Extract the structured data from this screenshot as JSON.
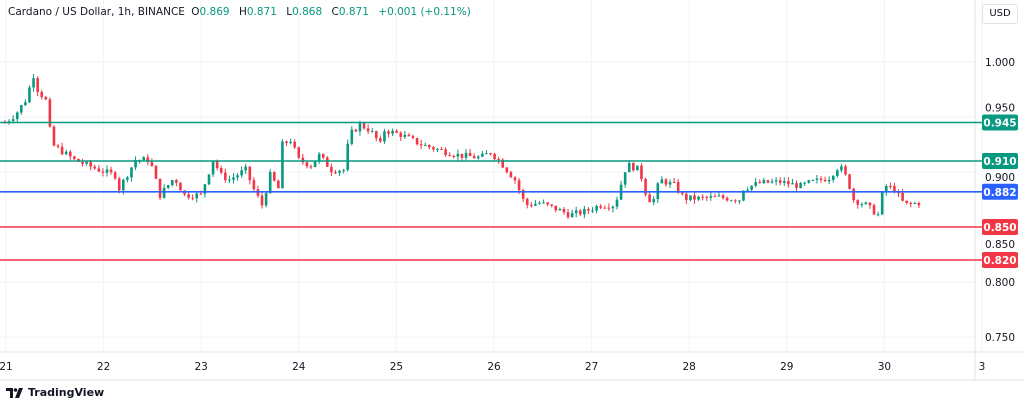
{
  "header": {
    "symbol": "Cardano / US Dollar, 1h, BINANCE",
    "o_label": "O",
    "o": "0.869",
    "h_label": "H",
    "h": "0.871",
    "l_label": "L",
    "l": "0.868",
    "c_label": "C",
    "c": "0.871",
    "change": "+0.001 (+0.11%)"
  },
  "currency_button": "USD",
  "brand": "TradingView",
  "colors": {
    "up": "#089981",
    "down": "#f23645",
    "resistance": "#089981",
    "pivot": "#2962ff",
    "support": "#f23645"
  },
  "chart_data": {
    "type": "candlestick",
    "title": "Cardano / US Dollar, 1h, BINANCE",
    "x_ticks": [
      "21",
      "22",
      "23",
      "24",
      "25",
      "26",
      "27",
      "28",
      "29",
      "30",
      "3"
    ],
    "y_ticks": [
      "1.000",
      "0.950",
      "0.900",
      "0.850",
      "0.800",
      "0.750"
    ],
    "y_tick_values": [
      1.0,
      0.95,
      0.9,
      0.85,
      0.8,
      0.75
    ],
    "ylim": [
      0.73,
      1.03
    ],
    "hours_total": 225,
    "close_path_hour_price": [
      [
        0,
        0.945
      ],
      [
        2.5,
        0.952
      ],
      [
        5,
        0.965
      ],
      [
        7,
        0.988
      ],
      [
        8,
        0.975
      ],
      [
        10,
        0.965
      ],
      [
        11.5,
        0.925
      ],
      [
        13.5,
        0.92
      ],
      [
        17,
        0.911
      ],
      [
        23,
        0.902
      ],
      [
        27,
        0.897
      ],
      [
        28,
        0.885
      ],
      [
        32,
        0.911
      ],
      [
        35.5,
        0.911
      ],
      [
        38,
        0.879
      ],
      [
        41.5,
        0.895
      ],
      [
        44,
        0.879
      ],
      [
        48,
        0.879
      ],
      [
        51,
        0.911
      ],
      [
        53,
        0.897
      ],
      [
        55,
        0.893
      ],
      [
        59,
        0.902
      ],
      [
        61,
        0.884
      ],
      [
        63,
        0.87
      ],
      [
        65,
        0.897
      ],
      [
        67,
        0.885
      ],
      [
        68,
        0.925
      ],
      [
        70,
        0.929
      ],
      [
        72,
        0.911
      ],
      [
        75,
        0.906
      ],
      [
        77,
        0.915
      ],
      [
        80,
        0.902
      ],
      [
        83,
        0.902
      ],
      [
        84.5,
        0.934
      ],
      [
        87,
        0.943
      ],
      [
        89.5,
        0.938
      ],
      [
        92,
        0.925
      ],
      [
        93,
        0.938
      ],
      [
        97,
        0.934
      ],
      [
        102,
        0.925
      ],
      [
        106.5,
        0.92
      ],
      [
        111.5,
        0.915
      ],
      [
        116.5,
        0.913
      ],
      [
        119,
        0.918
      ],
      [
        121,
        0.911
      ],
      [
        125,
        0.893
      ],
      [
        127.5,
        0.87
      ],
      [
        131,
        0.872
      ],
      [
        136,
        0.865
      ],
      [
        138.5,
        0.861
      ],
      [
        142,
        0.864
      ],
      [
        146,
        0.87
      ],
      [
        149.5,
        0.87
      ],
      [
        152,
        0.902
      ],
      [
        153,
        0.906
      ],
      [
        155.5,
        0.902
      ],
      [
        157.5,
        0.875
      ],
      [
        159,
        0.875
      ],
      [
        160.5,
        0.893
      ],
      [
        164,
        0.888
      ],
      [
        166.5,
        0.876
      ],
      [
        170,
        0.876
      ],
      [
        175,
        0.877
      ],
      [
        180,
        0.875
      ],
      [
        181,
        0.885
      ],
      [
        185,
        0.89
      ],
      [
        190,
        0.891
      ],
      [
        195,
        0.887
      ],
      [
        197,
        0.89
      ],
      [
        202,
        0.895
      ],
      [
        204.5,
        0.906
      ],
      [
        206.5,
        0.893
      ],
      [
        208,
        0.875
      ],
      [
        211,
        0.87
      ],
      [
        214,
        0.861
      ],
      [
        215.5,
        0.888
      ],
      [
        218,
        0.884
      ],
      [
        220.5,
        0.87
      ],
      [
        224,
        0.872
      ]
    ],
    "levels": [
      {
        "price": 0.945,
        "label": "0.945",
        "kind": "resistance"
      },
      {
        "price": 0.91,
        "label": "0.910",
        "kind": "resistance"
      },
      {
        "price": 0.882,
        "label": "0.882",
        "kind": "pivot"
      },
      {
        "price": 0.85,
        "label": "0.850",
        "kind": "support"
      },
      {
        "price": 0.82,
        "label": "0.820",
        "kind": "support"
      }
    ]
  }
}
